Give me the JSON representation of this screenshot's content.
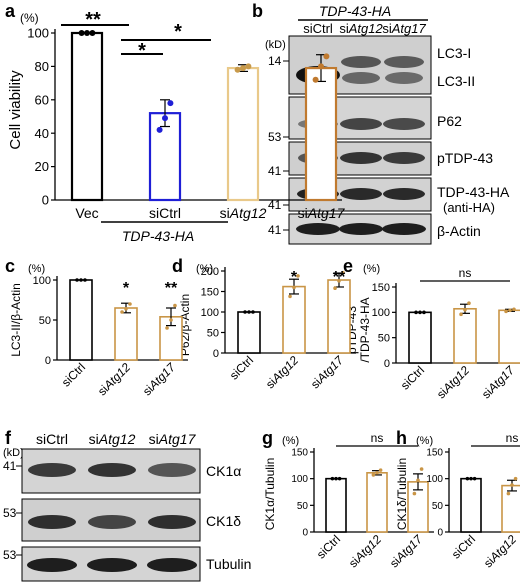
{
  "panels": {
    "a": {
      "letter": "a",
      "unit": "(%)",
      "ylabel": "Cell viability",
      "yticks": [
        "0",
        "20",
        "40",
        "60",
        "80",
        "100"
      ],
      "xticks": [
        {
          "pre": "Vec",
          "it": ""
        },
        {
          "pre": "siCtrl",
          "it": ""
        },
        {
          "pre": "si",
          "it": "Atg12"
        },
        {
          "pre": "si",
          "it": "Atg17"
        }
      ],
      "group_label": "TDP-43-HA",
      "sig": [
        "**",
        "*",
        "*"
      ]
    },
    "b": {
      "letter": "b",
      "header": "TDP-43-HA",
      "lanes": [
        {
          "pre": "siCtrl",
          "it": ""
        },
        {
          "pre": "si",
          "it": "Atg12"
        },
        {
          "pre": "si",
          "it": "Atg17"
        }
      ],
      "kd": "(kD)",
      "markers": [
        "14",
        "53",
        "41",
        "41",
        "41"
      ],
      "labels": [
        "LC3-I",
        "LC3-II",
        "P62",
        "pTDP-43",
        "TDP-43-HA",
        "(anti-HA)",
        "β-Actin"
      ]
    },
    "c": {
      "letter": "c",
      "unit": "(%)",
      "ylabel": "LC3-II/β-Actin",
      "yticks": [
        "0",
        "50",
        "100"
      ],
      "sig": [
        "*",
        "**"
      ]
    },
    "d": {
      "letter": "d",
      "unit": "(%)",
      "ylabel": "P62/β-Actin",
      "yticks": [
        "0",
        "50",
        "100",
        "150",
        "200"
      ],
      "sig": [
        "*",
        "**"
      ]
    },
    "e": {
      "letter": "e",
      "unit": "(%)",
      "ylabel1": "pTDP-43",
      "ylabel2": "/TDP-43-HA",
      "yticks": [
        "0",
        "50",
        "100",
        "150"
      ],
      "sig": [
        "ns"
      ]
    },
    "f": {
      "letter": "f",
      "lanes": [
        {
          "pre": "siCtrl",
          "it": ""
        },
        {
          "pre": "si",
          "it": "Atg12"
        },
        {
          "pre": "si",
          "it": "Atg17"
        }
      ],
      "kd": "(kD)",
      "markers": [
        "41",
        "53",
        "53"
      ],
      "labels": [
        "CK1α",
        "CK1δ",
        "Tubulin"
      ]
    },
    "g": {
      "letter": "g",
      "unit": "(%)",
      "ylabel": "CK1α/Tubulin",
      "yticks": [
        "0",
        "50",
        "100",
        "150"
      ],
      "sig": [
        "ns"
      ]
    },
    "h": {
      "letter": "h",
      "unit": "(%)",
      "ylabel": "CK1δ/Tubulin",
      "yticks": [
        "0",
        "50",
        "100",
        "150"
      ],
      "sig": [
        "ns"
      ]
    },
    "small_xticks": [
      {
        "pre": "siCtrl",
        "it": ""
      },
      {
        "pre": "si",
        "it": "Atg12"
      },
      {
        "pre": "si",
        "it": "Atg17"
      }
    ]
  },
  "chart_data": [
    {
      "panel": "a",
      "type": "bar",
      "ylabel": "Cell viability",
      "ylim": [
        0,
        100
      ],
      "categories": [
        "Vec",
        "siCtrl",
        "siAtg12",
        "siAtg17"
      ],
      "values": [
        100,
        52,
        79,
        79
      ],
      "errors": [
        0,
        8,
        2,
        8
      ],
      "points": [
        [
          100,
          100,
          100
        ],
        [
          42,
          49,
          58
        ],
        [
          78,
          79,
          80
        ],
        [
          72,
          80,
          86
        ]
      ],
      "colors": [
        "#000000",
        "#1f1fd6",
        "#e9c98a",
        "#c07a2f"
      ]
    },
    {
      "panel": "c",
      "type": "bar",
      "ylabel": "LC3-II/β-Actin",
      "ylim": [
        0,
        100
      ],
      "categories": [
        "siCtrl",
        "siAtg12",
        "siAtg17"
      ],
      "values": [
        100,
        65,
        54
      ],
      "errors": [
        0,
        6,
        11
      ],
      "points": [
        [
          100,
          100,
          100
        ],
        [
          60,
          64,
          70
        ],
        [
          40,
          50,
          68
        ]
      ]
    },
    {
      "panel": "d",
      "type": "bar",
      "ylabel": "P62/β-Actin",
      "ylim": [
        0,
        200
      ],
      "categories": [
        "siCtrl",
        "siAtg12",
        "siAtg17"
      ],
      "values": [
        100,
        162,
        178
      ],
      "errors": [
        0,
        18,
        17
      ],
      "points": [
        [
          100,
          100,
          100
        ],
        [
          138,
          160,
          188
        ],
        [
          158,
          176,
          196
        ]
      ]
    },
    {
      "panel": "e",
      "type": "bar",
      "ylabel": "pTDP-43/TDP-43-HA",
      "ylim": [
        0,
        150
      ],
      "categories": [
        "siCtrl",
        "siAtg12",
        "siAtg17"
      ],
      "values": [
        100,
        107,
        104
      ],
      "errors": [
        0,
        9,
        2
      ],
      "points": [
        [
          100,
          100,
          100
        ],
        [
          96,
          105,
          118
        ],
        [
          102,
          104,
          106
        ]
      ]
    },
    {
      "panel": "g",
      "type": "bar",
      "ylabel": "CK1α/Tubulin",
      "ylim": [
        0,
        150
      ],
      "categories": [
        "siCtrl",
        "siAtg12",
        "siAtg17"
      ],
      "values": [
        100,
        111,
        94
      ],
      "errors": [
        0,
        4,
        15
      ],
      "points": [
        [
          100,
          100,
          100
        ],
        [
          107,
          111,
          116
        ],
        [
          72,
          97,
          118
        ]
      ]
    },
    {
      "panel": "h",
      "type": "bar",
      "ylabel": "CK1δ/Tubulin",
      "ylim": [
        0,
        150
      ],
      "categories": [
        "siCtrl",
        "siAtg12",
        "siAtg17"
      ],
      "values": [
        100,
        87,
        118
      ],
      "errors": [
        0,
        10,
        9
      ],
      "points": [
        [
          100,
          100,
          100
        ],
        [
          72,
          88,
          100
        ],
        [
          106,
          118,
          130
        ]
      ]
    }
  ]
}
